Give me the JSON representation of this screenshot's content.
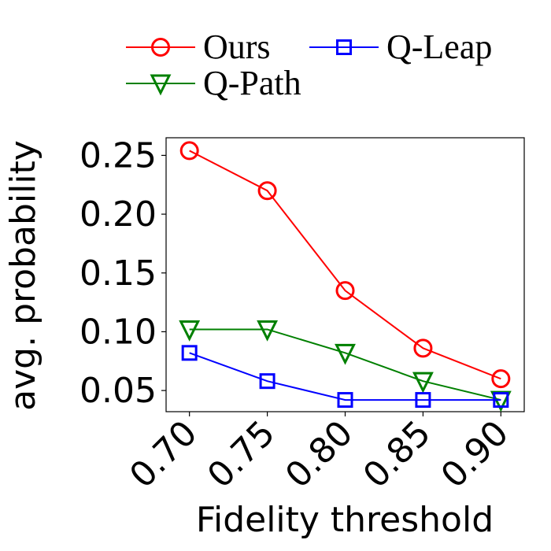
{
  "chart_data": {
    "type": "line",
    "xlabel": "Fidelity threshold",
    "ylabel": "avg. probability",
    "x": [
      0.7,
      0.75,
      0.8,
      0.85,
      0.9
    ],
    "x_tick_labels": [
      "0.70",
      "0.75",
      "0.80",
      "0.85",
      "0.90"
    ],
    "y_ticks": [
      0.05,
      0.1,
      0.15,
      0.2,
      0.25
    ],
    "y_tick_labels": [
      "0.05",
      "0.10",
      "0.15",
      "0.20",
      "0.25"
    ],
    "xlim": [
      0.685,
      0.915
    ],
    "ylim": [
      0.032,
      0.265
    ],
    "grid": false,
    "legend": "top (above plot), 2 columns",
    "series": [
      {
        "name": "Ours",
        "values": [
          0.254,
          0.22,
          0.135,
          0.086,
          0.06
        ],
        "color": "#ff0000",
        "marker": "circle"
      },
      {
        "name": "Q-Path",
        "values": [
          0.102,
          0.102,
          0.082,
          0.058,
          0.042
        ],
        "color": "#008000",
        "marker": "triangle-down"
      },
      {
        "name": "Q-Leap",
        "values": [
          0.082,
          0.058,
          0.042,
          0.042,
          0.042
        ],
        "color": "#0000ff",
        "marker": "square"
      }
    ]
  }
}
